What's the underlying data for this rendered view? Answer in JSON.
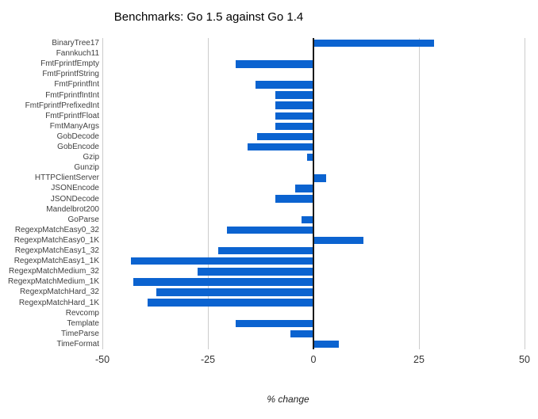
{
  "chart_data": {
    "type": "bar",
    "orientation": "horizontal",
    "title": "Benchmarks: Go 1.5 against Go 1.4",
    "xlabel": "% change",
    "xlim": [
      -50,
      50
    ],
    "xticks": [
      -50,
      -25,
      0,
      25,
      50
    ],
    "grid": true,
    "legend": false,
    "bar_color": "#0b63d0",
    "gridline_color": "#cccccc",
    "zero_line_color": "#1a1a1a",
    "categories": [
      "BinaryTree17",
      "Fannkuch11",
      "FmtFprintfEmpty",
      "FmtFprintfString",
      "FmtFprintfInt",
      "FmtFprintfIntInt",
      "FmtFprintfPrefixedInt",
      "FmtFprintfFloat",
      "FmtManyArgs",
      "GobDecode",
      "GobEncode",
      "Gzip",
      "Gunzip",
      "HTTPClientServer",
      "JSONEncode",
      "JSONDecode",
      "Mandelbrot200",
      "GoParse",
      "RegexpMatchEasy0_32",
      "RegexpMatchEasy0_1K",
      "RegexpMatchEasy1_32",
      "RegexpMatchEasy1_1K",
      "RegexpMatchMedium_32",
      "RegexpMatchMedium_1K",
      "RegexpMatchHard_32",
      "RegexpMatchHard_1K",
      "Revcomp",
      "Template",
      "TimeParse",
      "TimeFormat"
    ],
    "values": [
      28.4,
      0,
      -18.2,
      0,
      -13.5,
      -8.8,
      -8.8,
      -8.8,
      -8.8,
      -13.2,
      -15.4,
      -1.3,
      0,
      2.8,
      -4.1,
      -8.8,
      0,
      -2.6,
      -20.3,
      11.7,
      -22.4,
      -43.0,
      -27.3,
      -42.5,
      -37.0,
      -39.1,
      0,
      -18.2,
      -5.3,
      5.8
    ]
  }
}
